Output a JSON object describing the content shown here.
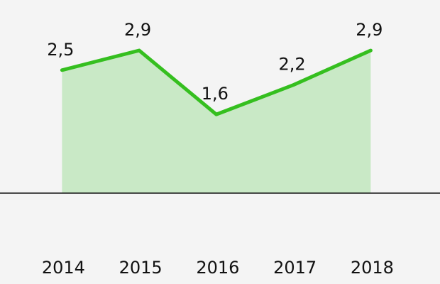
{
  "chart_data": {
    "type": "area",
    "categories": [
      "2014",
      "2015",
      "2016",
      "2017",
      "2018"
    ],
    "values": [
      2.5,
      2.9,
      1.6,
      2.2,
      2.9
    ],
    "value_labels": [
      "2,5",
      "2,9",
      "1,6",
      "2,2",
      "2,9"
    ],
    "color": "#35bf1f",
    "fill_color": "#c9e9c6",
    "ylim": [
      0,
      3.5
    ]
  }
}
